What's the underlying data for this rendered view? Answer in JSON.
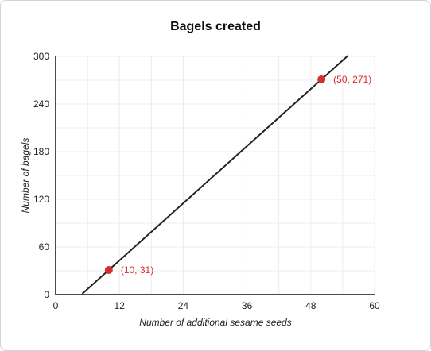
{
  "chart_data": {
    "type": "line",
    "title": "Bagels created",
    "xlabel": "Number of additional sesame seeds",
    "ylabel": "Number of bagels",
    "xlim": [
      0,
      60
    ],
    "ylim": [
      0,
      300
    ],
    "xticks": [
      0,
      12,
      24,
      36,
      48,
      60
    ],
    "yticks": [
      0,
      60,
      120,
      180,
      240,
      300
    ],
    "grid": true,
    "line": {
      "x": [
        5,
        55
      ],
      "y": [
        1,
        301
      ],
      "color": "#222222"
    },
    "points": [
      {
        "x": 10,
        "y": 31,
        "label": "(10, 31)",
        "color": "#d32f2f"
      },
      {
        "x": 50,
        "y": 271,
        "label": "(50, 271)",
        "color": "#d32f2f"
      }
    ]
  }
}
